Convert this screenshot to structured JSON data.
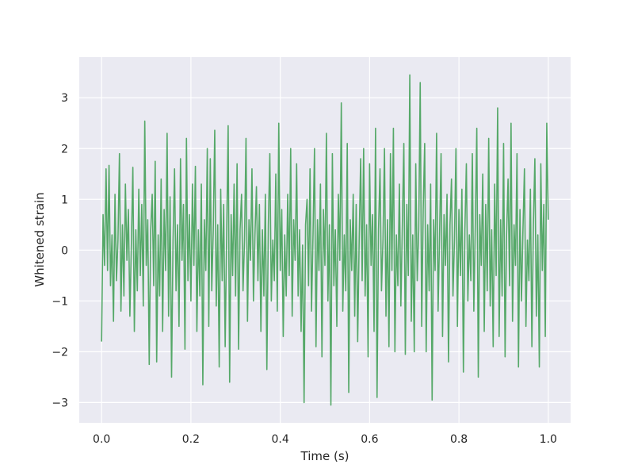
{
  "chart_data": {
    "type": "line",
    "title": "",
    "xlabel": "Time (s)",
    "ylabel": "Whitened strain",
    "xlim": [
      -0.05,
      1.05
    ],
    "ylim": [
      -3.4,
      3.8
    ],
    "xticks": [
      0.0,
      0.2,
      0.4,
      0.6,
      0.8,
      1.0
    ],
    "xtick_labels": [
      "0.0",
      "0.2",
      "0.4",
      "0.6",
      "0.8",
      "1.0"
    ],
    "yticks": [
      -3,
      -2,
      -1,
      0,
      1,
      2,
      3
    ],
    "ytick_labels": [
      "−3",
      "−2",
      "−1",
      "0",
      "1",
      "2",
      "3"
    ],
    "grid": true,
    "style": "seaborn darkgrid",
    "background_color": "#eaeaf2",
    "grid_color": "#ffffff",
    "series": [
      {
        "color": "#55a868",
        "x_start": 0.0,
        "x_end": 1.0,
        "values": [
          -1.8,
          0.7,
          -0.3,
          1.6,
          -0.4,
          1.67,
          -0.7,
          0.3,
          -1.4,
          1.1,
          -0.6,
          0.2,
          1.9,
          -1.2,
          0.5,
          -0.9,
          1.3,
          -0.2,
          0.8,
          -1.3,
          0.1,
          1.63,
          -1.6,
          0.4,
          -0.8,
          1.2,
          -0.5,
          0.9,
          -1.1,
          2.54,
          -0.3,
          0.6,
          -2.25,
          0.4,
          1.1,
          -0.7,
          1.75,
          -2.2,
          0.3,
          -0.9,
          1.4,
          -1.6,
          0.8,
          -0.4,
          2.3,
          -1.3,
          1.05,
          -2.5,
          0.2,
          1.6,
          -0.8,
          0.5,
          -1.5,
          1.8,
          -0.2,
          0.9,
          -1.95,
          2.2,
          -0.6,
          0.7,
          -1.0,
          1.3,
          -0.3,
          1.65,
          -1.6,
          0.4,
          -0.9,
          1.3,
          -2.65,
          0.6,
          -0.4,
          2.0,
          -1.5,
          1.8,
          -0.8,
          0.4,
          2.36,
          -1.1,
          0.5,
          -2.3,
          1.2,
          -0.6,
          0.9,
          -1.9,
          0.3,
          2.45,
          -2.6,
          0.7,
          -0.5,
          1.3,
          -0.9,
          1.7,
          -1.95,
          0.4,
          1.1,
          -0.8,
          0.2,
          2.2,
          -1.4,
          0.6,
          -0.2,
          1.6,
          -1.0,
          0.3,
          1.25,
          -0.6,
          0.9,
          -1.6,
          0.4,
          -0.9,
          1.1,
          -2.35,
          0.5,
          1.9,
          -1.0,
          0.2,
          -0.6,
          1.5,
          -1.2,
          2.5,
          -0.4,
          0.8,
          -1.7,
          0.3,
          -0.9,
          1.1,
          -0.5,
          2.0,
          -1.3,
          0.6,
          -0.2,
          1.7,
          -0.9,
          0.4,
          -1.6,
          0.1,
          -3.0,
          0.5,
          1.0,
          -0.7,
          1.6,
          -1.2,
          0.3,
          2.0,
          -1.9,
          0.6,
          -0.4,
          1.3,
          -2.1,
          0.8,
          -0.3,
          2.3,
          -1.0,
          0.5,
          -3.05,
          1.9,
          -0.7,
          0.4,
          -1.5,
          1.1,
          -0.2,
          2.9,
          -1.2,
          0.3,
          -0.8,
          2.1,
          -2.8,
          0.6,
          -0.4,
          1.1,
          -1.3,
          0.9,
          -1.8,
          0.2,
          1.8,
          -0.6,
          2.0,
          -0.9,
          0.5,
          -2.1,
          1.7,
          -0.3,
          0.7,
          -1.6,
          2.4,
          -2.9,
          0.4,
          1.6,
          -0.8,
          0.2,
          2.0,
          -1.3,
          0.6,
          -1.9,
          1.9,
          -0.4,
          2.4,
          -2.0,
          0.3,
          -0.7,
          1.3,
          -1.1,
          0.5,
          2.1,
          -2.05,
          0.9,
          -0.5,
          3.45,
          -1.4,
          0.3,
          -2.0,
          1.7,
          -0.6,
          0.4,
          3.3,
          -1.5,
          0.8,
          2.1,
          -2.0,
          0.5,
          -0.8,
          1.3,
          -2.95,
          0.6,
          -0.4,
          2.3,
          -1.2,
          0.3,
          1.9,
          -1.7,
          0.7,
          -0.3,
          1.1,
          -2.2,
          0.5,
          1.4,
          -0.9,
          0.2,
          2.0,
          -1.5,
          0.8,
          -0.5,
          1.2,
          -2.4,
          0.4,
          1.7,
          -1.0,
          0.3,
          -0.6,
          1.9,
          -1.2,
          0.5,
          2.4,
          -2.5,
          0.7,
          -0.3,
          1.5,
          -1.6,
          0.9,
          -0.8,
          2.2,
          -1.1,
          0.4,
          -1.9,
          1.3,
          -0.5,
          2.8,
          -1.7,
          0.6,
          -0.9,
          2.1,
          -2.1,
          0.3,
          1.4,
          -0.7,
          2.5,
          -1.4,
          0.5,
          -0.3,
          1.9,
          -2.3,
          0.8,
          -1.0,
          0.4,
          1.6,
          -1.5,
          0.2,
          -0.6,
          1.2,
          -1.9,
          0.5,
          1.8,
          -1.3,
          0.3,
          -2.3,
          1.7,
          -0.4,
          0.9,
          -1.7,
          2.5,
          0.6
        ]
      }
    ]
  }
}
